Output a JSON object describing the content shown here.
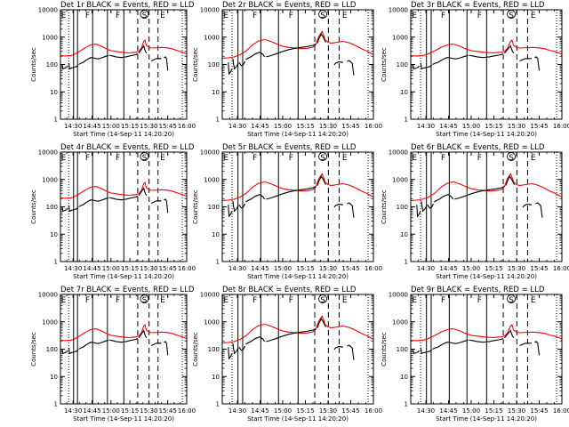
{
  "colors": {
    "events": "#000000",
    "lld": "#ff0000",
    "background": "#ffffff"
  },
  "chart_data": [
    {
      "type": "line",
      "title": "Det 1r BLACK = Events, RED = LLD",
      "variant": "A"
    },
    {
      "type": "line",
      "title": "Det 2r BLACK = Events, RED = LLD",
      "variant": "B"
    },
    {
      "type": "line",
      "title": "Det 3r BLACK = Events, RED = LLD",
      "variant": "A"
    },
    {
      "type": "line",
      "title": "Det 4r BLACK = Events, RED = LLD",
      "variant": "A"
    },
    {
      "type": "line",
      "title": "Det 5r BLACK = Events, RED = LLD",
      "variant": "B"
    },
    {
      "type": "line",
      "title": "Det 6r BLACK = Events, RED = LLD",
      "variant": "B"
    },
    {
      "type": "line",
      "title": "Det 7r BLACK = Events, RED = LLD",
      "variant": "A"
    },
    {
      "type": "line",
      "title": "Det 8r BLACK = Events, RED = LLD",
      "variant": "B"
    },
    {
      "type": "line",
      "title": "Det 9r BLACK = Events, RED = LLD",
      "variant": "A"
    }
  ],
  "shared_axes": {
    "xlabel": "Start Time (14-Sep-11 14:20:20)",
    "ylabel": "Counts/sec",
    "xlim_minutes": [
      0,
      100
    ],
    "x_ticks": [
      {
        "m": 10,
        "label": "14:30"
      },
      {
        "m": 25,
        "label": "14:45"
      },
      {
        "m": 40,
        "label": "15:00"
      },
      {
        "m": 55,
        "label": "15:15"
      },
      {
        "m": 70,
        "label": "15:30"
      },
      {
        "m": 85,
        "label": "15:45"
      },
      {
        "m": 100,
        "label": "16:00"
      }
    ],
    "ylim": [
      1,
      10000
    ],
    "yscale": "log",
    "y_ticks": [
      {
        "v": 1,
        "label": "1"
      },
      {
        "v": 10,
        "label": "10"
      },
      {
        "v": 100,
        "label": "100"
      },
      {
        "v": 1000,
        "label": "1000"
      },
      {
        "v": 10000,
        "label": "10000"
      }
    ]
  },
  "marker_lines": {
    "dotted": [
      6.5,
      96.5
    ],
    "solid": [
      10.4,
      13.5,
      25.5,
      37.2,
      50.2
    ],
    "dashed": [
      61.2,
      70.2,
      77.3
    ]
  },
  "flags": [
    {
      "m": 2.5,
      "label": "E"
    },
    {
      "m": 21.5,
      "label": "F"
    },
    {
      "m": 45.5,
      "label": "F"
    },
    {
      "m": 66.5,
      "label": "S"
    },
    {
      "m": 81,
      "label": "E"
    }
  ],
  "series_variants": {
    "A": {
      "lld": {
        "name": "LLD",
        "x": [
          0,
          4,
          8,
          12,
          16,
          20,
          24,
          28,
          32,
          36,
          40,
          44,
          48,
          52,
          54,
          56,
          60,
          62,
          64,
          66,
          67,
          68,
          70,
          72,
          76,
          80,
          84,
          88,
          92,
          96,
          100
        ],
        "y": [
          210,
          205,
          210,
          250,
          320,
          420,
          520,
          560,
          480,
          380,
          320,
          300,
          280,
          270,
          265,
          270,
          280,
          300,
          390,
          700,
          780,
          500,
          420,
          400,
          410,
          420,
          410,
          380,
          330,
          290,
          240
        ]
      },
      "events": [
        {
          "x": [
            1.5,
            2,
            3,
            4,
            5,
            5.5
          ],
          "y": [
            95,
            70,
            72,
            75,
            80,
            90
          ]
        },
        {
          "x": [
            6.7,
            7.2,
            9,
            11,
            13,
            14
          ],
          "y": [
            110,
            70,
            75,
            80,
            85,
            95
          ]
        },
        {
          "x": [
            14.5,
            16,
            18,
            20,
            22,
            24,
            26,
            28,
            30,
            32,
            34,
            36,
            38
          ],
          "y": [
            100,
            110,
            120,
            140,
            160,
            180,
            175,
            165,
            160,
            170,
            185,
            200,
            215
          ]
        },
        {
          "x": [
            38.5,
            40,
            42,
            44,
            46,
            48,
            50,
            52,
            54,
            56,
            58,
            60,
            61
          ],
          "y": [
            220,
            210,
            200,
            190,
            185,
            180,
            185,
            190,
            200,
            210,
            220,
            230,
            250
          ]
        },
        {
          "x": [
            62,
            63,
            64.5,
            66,
            67,
            68
          ],
          "y": [
            260,
            300,
            380,
            480,
            330,
            260
          ]
        },
        {
          "x": [
            72,
            74,
            76,
            78,
            80
          ],
          "y": [
            135,
            150,
            165,
            165,
            165
          ]
        },
        {
          "x": [
            82,
            83,
            84,
            85
          ],
          "y": [
            175,
            190,
            165,
            60
          ]
        }
      ]
    },
    "B": {
      "lld": {
        "name": "LLD",
        "x": [
          0,
          4,
          8,
          12,
          16,
          20,
          24,
          28,
          32,
          36,
          40,
          44,
          48,
          52,
          56,
          60,
          62,
          64,
          66,
          67,
          68,
          70,
          72,
          76,
          80,
          84,
          88,
          92,
          96,
          100
        ],
        "y": [
          170,
          175,
          190,
          230,
          320,
          520,
          720,
          820,
          700,
          560,
          460,
          420,
          400,
          380,
          390,
          430,
          560,
          1100,
          1600,
          1200,
          800,
          650,
          600,
          650,
          700,
          620,
          500,
          380,
          300,
          230
        ]
      },
      "events": [
        {
          "x": [
            4,
            4.5,
            5.5,
            6.5
          ],
          "y": [
            120,
            45,
            55,
            70
          ]
        },
        {
          "x": [
            7,
            8,
            9.5,
            10.5
          ],
          "y": [
            160,
            70,
            85,
            110
          ]
        },
        {
          "x": [
            11,
            12.5,
            14,
            15
          ],
          "y": [
            120,
            90,
            100,
            130
          ]
        },
        {
          "x": [
            15.5,
            17,
            19,
            21,
            23,
            25,
            27,
            28
          ],
          "y": [
            150,
            170,
            190,
            230,
            260,
            280,
            230,
            190
          ]
        },
        {
          "x": [
            29,
            32,
            36,
            40,
            44,
            48,
            52,
            56,
            60,
            62
          ],
          "y": [
            190,
            210,
            250,
            300,
            350,
            390,
            420,
            450,
            500,
            560
          ]
        },
        {
          "x": [
            63,
            64,
            65.5,
            67,
            68.5
          ],
          "y": [
            600,
            900,
            1300,
            950,
            640
          ]
        },
        {
          "x": [
            74,
            75,
            77,
            79,
            80
          ],
          "y": [
            95,
            110,
            125,
            120,
            120
          ]
        },
        {
          "x": [
            82.5,
            84,
            86,
            87
          ],
          "y": [
            130,
            140,
            110,
            40
          ]
        }
      ]
    }
  }
}
